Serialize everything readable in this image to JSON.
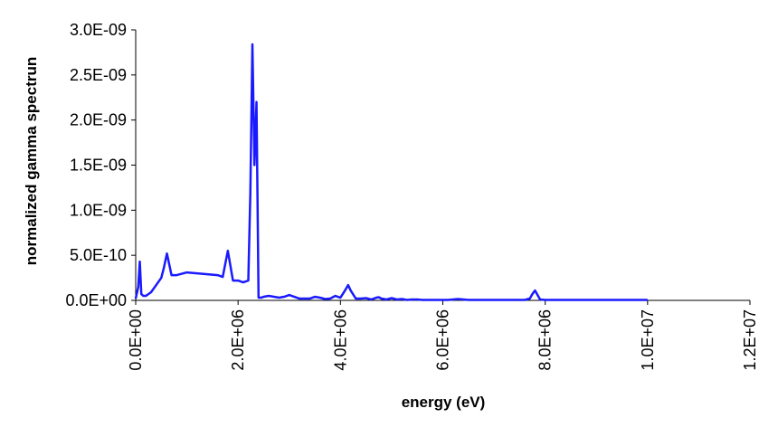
{
  "chart_data": {
    "type": "line",
    "title": "",
    "xlabel": "energy (eV)",
    "ylabel": "normalized gamma spectrun",
    "xlim": [
      0,
      12000000
    ],
    "ylim": [
      0,
      3e-09
    ],
    "x_ticks": [
      0,
      2000000,
      4000000,
      6000000,
      8000000,
      10000000,
      12000000
    ],
    "x_tick_labels": [
      "0.0E+00",
      "2.0E+06",
      "4.0E+06",
      "6.0E+06",
      "8.0E+06",
      "1.0E+07",
      "1.2E+07"
    ],
    "y_ticks": [
      0,
      5e-10,
      1e-09,
      1.5e-09,
      2e-09,
      2.5e-09,
      3e-09
    ],
    "y_tick_labels": [
      "0.0E+00",
      "5.0E-10",
      "1.0E-09",
      "1.5E-09",
      "2.0E-09",
      "2.5E-09",
      "3.0E-09"
    ],
    "grid": false,
    "legend": "none",
    "line_color": "#1a1aff",
    "series": [
      {
        "x": [
          0,
          50000,
          80000,
          110000,
          150000,
          200000,
          300000,
          400000,
          500000,
          550000,
          610000,
          700000,
          800000,
          1000000,
          1200000,
          1400000,
          1600000,
          1700000,
          1800000,
          1900000,
          2000000,
          2100000,
          2200000,
          2240000,
          2280000,
          2320000,
          2360000,
          2400000,
          2450000,
          2500000,
          2600000,
          2700000,
          2800000,
          2900000,
          3000000,
          3100000,
          3200000,
          3300000,
          3400000,
          3500000,
          3600000,
          3700000,
          3800000,
          3900000,
          4000000,
          4100000,
          4150000,
          4200000,
          4300000,
          4400000,
          4500000,
          4600000,
          4700000,
          4750000,
          4800000,
          4900000,
          5000000,
          5100000,
          5200000,
          5300000,
          5400000,
          5500000,
          5600000,
          5800000,
          6000000,
          6100000,
          6200000,
          6300000,
          6400000,
          6500000,
          6700000,
          7000000,
          7300000,
          7600000,
          7700000,
          7750000,
          7800000,
          7850000,
          7900000,
          8000000,
          8500000,
          9000000,
          9500000,
          10000000
        ],
        "y": [
          2e-11,
          1.5e-10,
          4.3e-10,
          7e-11,
          5e-11,
          5e-11,
          9e-11,
          1.7e-10,
          2.5e-10,
          3.6e-10,
          5.2e-10,
          2.8e-10,
          2.8e-10,
          3.1e-10,
          3e-10,
          2.9e-10,
          2.8e-10,
          2.6e-10,
          5.5e-10,
          2.2e-10,
          2.2e-10,
          2e-10,
          2.2e-10,
          1.2e-09,
          2.84e-09,
          1.5e-09,
          2.2e-09,
          3e-11,
          3e-11,
          4e-11,
          5e-11,
          4e-11,
          3e-11,
          4e-11,
          6e-11,
          4e-11,
          2e-11,
          2e-11,
          2e-11,
          4e-11,
          3e-11,
          1.5e-11,
          2e-11,
          5e-11,
          3e-11,
          1.2e-10,
          1.7e-10,
          1.1e-10,
          2e-11,
          2e-11,
          2.5e-11,
          1e-11,
          3e-11,
          3.5e-11,
          2e-11,
          1e-11,
          2.5e-11,
          1e-11,
          1.5e-11,
          5e-12,
          1e-11,
          1e-11,
          5e-12,
          5e-12,
          5e-12,
          5e-12,
          1e-11,
          1.5e-11,
          1e-11,
          5e-12,
          5e-12,
          5e-12,
          5e-12,
          5e-12,
          2e-11,
          7e-11,
          1.1e-10,
          6e-11,
          1e-11,
          5e-12,
          5e-12,
          5e-12,
          5e-12,
          5e-12
        ]
      }
    ]
  }
}
